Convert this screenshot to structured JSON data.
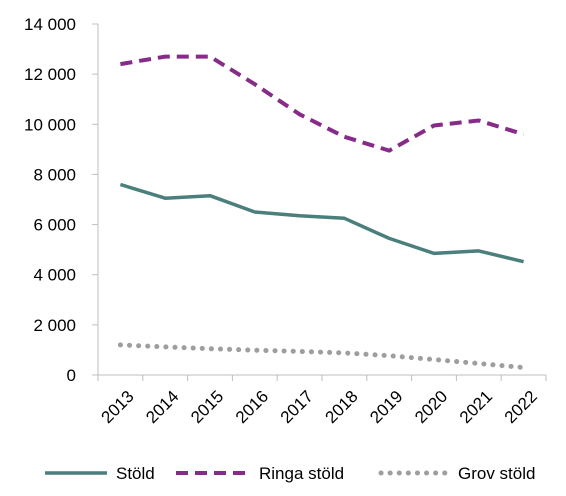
{
  "chart_data": {
    "type": "line",
    "x": [
      "2013",
      "2014",
      "2015",
      "2016",
      "2017",
      "2018",
      "2019",
      "2020",
      "2021",
      "2022"
    ],
    "ylim": [
      0,
      14000
    ],
    "yticks": [
      0,
      2000,
      4000,
      6000,
      8000,
      10000,
      12000,
      14000
    ],
    "ytick_labels": [
      "0",
      "2 000",
      "4 000",
      "6 000",
      "8 000",
      "10 000",
      "12 000",
      "14 000"
    ],
    "grid": false,
    "legend_position": "bottom",
    "series": [
      {
        "name": "Stöld",
        "color": "#4a7f7b",
        "style": "solid",
        "values": [
          7600,
          7050,
          7150,
          6500,
          6350,
          6250,
          5450,
          4850,
          4950,
          4520
        ]
      },
      {
        "name": "Ringa stöld",
        "color": "#862b87",
        "style": "dashed",
        "values": [
          12400,
          12700,
          12700,
          11600,
          10400,
          9500,
          8950,
          9950,
          10150,
          9600
        ]
      },
      {
        "name": "Grov stöld",
        "color": "#9e9e9e",
        "style": "dotted",
        "values": [
          1200,
          1120,
          1050,
          990,
          940,
          880,
          770,
          620,
          460,
          300
        ]
      }
    ]
  }
}
